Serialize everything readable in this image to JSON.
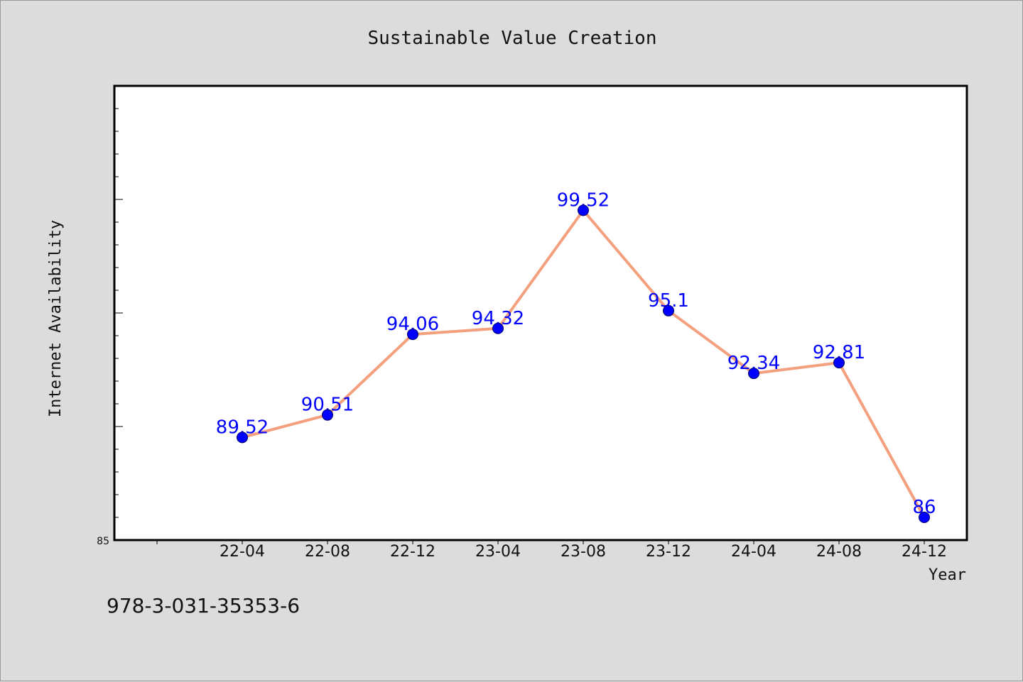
{
  "chart_data": {
    "type": "line",
    "title": "Sustainable Value Creation",
    "xlabel": "Year",
    "ylabel": "Internet Availability",
    "categories": [
      "22-04",
      "22-08",
      "22-12",
      "23-04",
      "23-08",
      "23-12",
      "24-04",
      "24-08",
      "24-12"
    ],
    "series": [
      {
        "values": [
          89.52,
          90.51,
          94.06,
          94.32,
          99.52,
          95.1,
          92.34,
          92.81,
          86
        ]
      }
    ],
    "data_labels": [
      "89.52",
      "90.51",
      "94.06",
      "94.32",
      "99.52",
      "95.1",
      "92.34",
      "92.81",
      "86"
    ],
    "y_tick_labels": [
      "85"
    ],
    "ylim": [
      85,
      105
    ],
    "grid": false,
    "legend": "none",
    "colors": {
      "line": "#f4a07e",
      "marker": "#0000ff",
      "label": "#0000ff",
      "plot_background": "#ffffff",
      "page_background": "#dcdcdc"
    }
  },
  "footer": {
    "isbn": "978-3-031-35353-6"
  }
}
